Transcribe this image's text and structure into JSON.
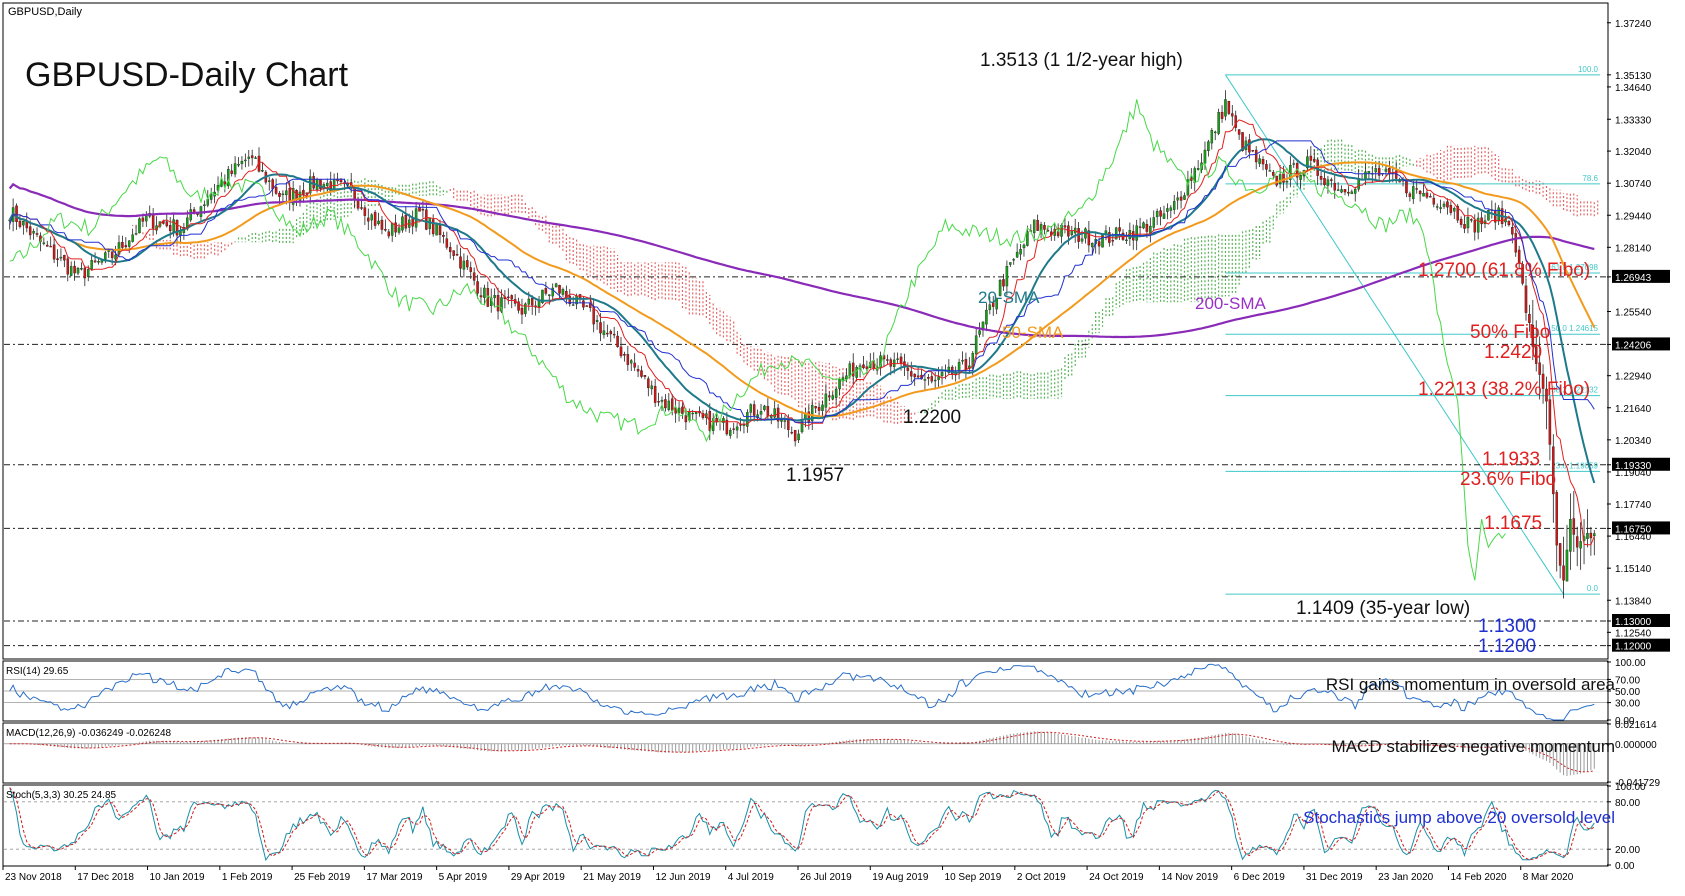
{
  "window": {
    "header": "GBPUSD,Daily"
  },
  "chart_data": [
    {
      "type": "candlestick",
      "title": "GBPUSD-Daily Chart",
      "ylim": [
        1.115,
        1.38
      ],
      "price_ticks": [
        "1.37240",
        "1.35130",
        "1.34640",
        "1.33330",
        "1.32040",
        "1.30740",
        "1.29440",
        "1.28140",
        "1.26943",
        "1.25540",
        "1.24206",
        "1.22940",
        "1.21640",
        "1.20340",
        "1.19330",
        "1.19040",
        "1.17740",
        "1.16750",
        "1.16440",
        "1.15140",
        "1.13840",
        "1.13000",
        "1.12540",
        "1.12000"
      ],
      "highlighted_ticks": [
        "1.26943",
        "1.24206",
        "1.19330",
        "1.16750",
        "1.13000",
        "1.12000"
      ],
      "x_ticks": [
        "23 Nov 2018",
        "17 Dec 2018",
        "10 Jan 2019",
        "1 Feb 2019",
        "25 Feb 2019",
        "17 Mar 2019",
        "5 Apr 2019",
        "29 Apr 2019",
        "21 May 2019",
        "12 Jun 2019",
        "4 Jul 2019",
        "26 Jul 2019",
        "19 Aug 2019",
        "10 Sep 2019",
        "2 Oct 2019",
        "24 Oct 2019",
        "14 Nov 2019",
        "6 Dec 2019",
        "31 Dec 2019",
        "23 Jan 2020",
        "14 Feb 2020",
        "8 Mar 2020"
      ],
      "keypoints": [
        [
          0,
          1.296
        ],
        [
          10,
          1.282
        ],
        [
          20,
          1.27
        ],
        [
          30,
          1.278
        ],
        [
          40,
          1.293
        ],
        [
          50,
          1.289
        ],
        [
          60,
          1.305
        ],
        [
          70,
          1.318
        ],
        [
          80,
          1.301
        ],
        [
          90,
          1.308
        ],
        [
          100,
          1.304
        ],
        [
          110,
          1.287
        ],
        [
          120,
          1.295
        ],
        [
          130,
          1.28
        ],
        [
          140,
          1.26
        ],
        [
          150,
          1.256
        ],
        [
          160,
          1.265
        ],
        [
          170,
          1.254
        ],
        [
          180,
          1.238
        ],
        [
          190,
          1.22
        ],
        [
          200,
          1.212
        ],
        [
          210,
          1.209
        ],
        [
          220,
          1.217
        ],
        [
          230,
          1.206
        ],
        [
          240,
          1.223
        ],
        [
          250,
          1.236
        ],
        [
          260,
          1.233
        ],
        [
          270,
          1.226
        ],
        [
          280,
          1.233
        ],
        [
          290,
          1.266
        ],
        [
          300,
          1.29
        ],
        [
          310,
          1.287
        ],
        [
          320,
          1.285
        ],
        [
          330,
          1.288
        ],
        [
          340,
          1.296
        ],
        [
          350,
          1.32
        ],
        [
          356,
          1.34
        ],
        [
          360,
          1.325
        ],
        [
          370,
          1.308
        ],
        [
          380,
          1.315
        ],
        [
          390,
          1.305
        ],
        [
          400,
          1.312
        ],
        [
          410,
          1.305
        ],
        [
          420,
          1.3
        ],
        [
          428,
          1.29
        ],
        [
          435,
          1.295
        ],
        [
          440,
          1.29
        ],
        [
          446,
          1.24
        ],
        [
          450,
          1.22
        ],
        [
          453,
          1.16
        ],
        [
          455,
          1.145
        ],
        [
          457,
          1.17
        ],
        [
          459,
          1.158
        ],
        [
          461,
          1.165
        ],
        [
          464,
          1.164
        ]
      ],
      "fibo_levels": [
        {
          "label": "100.0",
          "price": 1.3513
        },
        {
          "label": "78.6",
          "price": 1.3071
        },
        {
          "label": "61.8 1.27098",
          "price": 1.271
        },
        {
          "label": "50.0 1.24615",
          "price": 1.2462
        },
        {
          "label": "38.2 1.22132",
          "price": 1.2213
        },
        {
          "label": "23.6 1.19059",
          "price": 1.1906
        },
        {
          "label": "0.0",
          "price": 1.1409
        }
      ],
      "dashed_levels": [
        1.26943,
        1.24206,
        1.1933,
        1.1675,
        1.13,
        1.12
      ],
      "annotations": [
        {
          "text": "1.3513 (1 1/2-year high)",
          "color": "#111111"
        },
        {
          "text": "1.2700 (61.8% Fibo)",
          "color": "#e02020"
        },
        {
          "text": "50% Fibo",
          "color": "#e02020"
        },
        {
          "text": "1.2420",
          "color": "#e02020"
        },
        {
          "text": "1.2213 (38.2% Fibo)",
          "color": "#e02020"
        },
        {
          "text": "1.1933",
          "color": "#e02020"
        },
        {
          "text": "23.6% Fibo",
          "color": "#e02020"
        },
        {
          "text": "1.1675",
          "color": "#e02020"
        },
        {
          "text": "1.1409 (35-year low)",
          "color": "#111111"
        },
        {
          "text": "1.1300",
          "color": "#2030d0"
        },
        {
          "text": "1.1200",
          "color": "#2030d0"
        },
        {
          "text": "1.2200",
          "color": "#111111"
        },
        {
          "text": "1.1957",
          "color": "#111111"
        },
        {
          "text": "20-SMA",
          "color": "#1e7a8a"
        },
        {
          "text": "50-SMA",
          "color": "#f29a1c"
        },
        {
          "text": "200-SMA",
          "color": "#9b30c8"
        }
      ],
      "colors": {
        "bull": "#1a9c1a",
        "bear": "#c81818",
        "sma20": "#1e7a8a",
        "sma50": "#f29a1c",
        "sma200": "#8a2ab8",
        "tenkan": "#e02020",
        "kijun": "#2030d0",
        "chikou": "#48d848",
        "cloud_bull": "#2ca02c",
        "cloud_bear": "#e04040",
        "fibo": "#40c8c8"
      }
    },
    {
      "type": "line",
      "title": "RSI(14) 29.65",
      "annotation": "RSI gains momentum in oversold area",
      "ticks": [
        "100.00",
        "70.00",
        "50.00",
        "30.00",
        "0.00"
      ],
      "levels": [
        70,
        50,
        30
      ],
      "ylim": [
        0,
        100
      ]
    },
    {
      "type": "bar",
      "title": "MACD(12,26,9) -0.036249 -0.026248",
      "annotation": "MACD stabilizes negative momentum",
      "ticks": [
        "0.021614",
        "0.000000",
        "-0.041729"
      ],
      "ylim": [
        -0.0417,
        0.0216
      ]
    },
    {
      "type": "line",
      "title": "Stoch(5,3,3) 30.25 24.85",
      "annotation": "Stochastics jump above 20 oversold level",
      "ticks": [
        "100.00",
        "80.00",
        "20.00",
        "0.00"
      ],
      "levels": [
        80,
        20
      ],
      "ylim": [
        0,
        100
      ]
    }
  ]
}
